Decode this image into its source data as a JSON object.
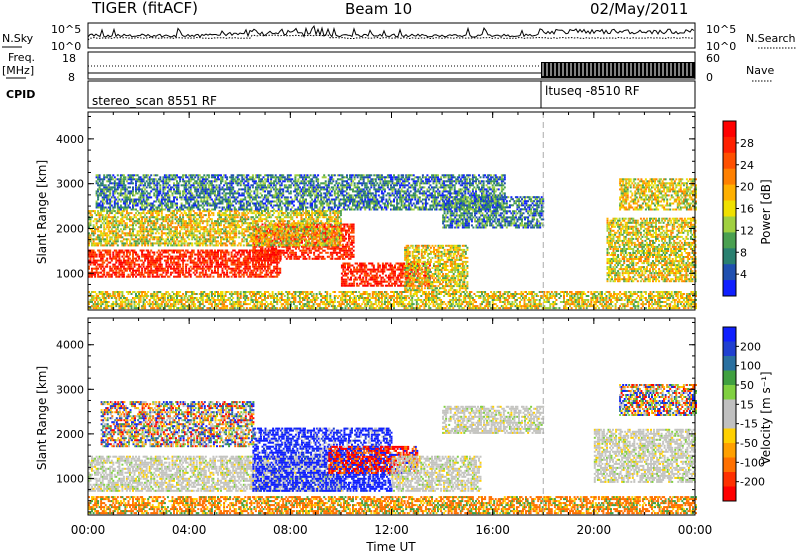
{
  "header": {
    "radar": "TIGER (fitACF)",
    "beam": "Beam 10",
    "date": "02/May/2011"
  },
  "sky_panel": {
    "left_label": "N.Sky",
    "right_label": "N.Search",
    "ticks": [
      "10^5",
      "10^0"
    ]
  },
  "freq_panel": {
    "label_line1": "Freq.",
    "label_line2": "[MHz]",
    "left_ticks": [
      "18",
      "8"
    ],
    "right_label": "Nave",
    "right_ticks": [
      "60",
      "0"
    ]
  },
  "cpid_panel": {
    "label": "CPID",
    "programs": [
      "stereo_scan 8551 RF",
      "ltuseq -8510 RF"
    ]
  },
  "chart_data": [
    {
      "type": "heatmap",
      "title": "",
      "xlabel": "Time UT",
      "ylabel": "Slant Range [km]",
      "xlim": [
        0,
        24
      ],
      "ylim": [
        180,
        4600
      ],
      "x_ticks": [
        "00:00",
        "04:00",
        "08:00",
        "12:00",
        "16:00",
        "20:00",
        "00:00"
      ],
      "y_ticks": [
        "1000",
        "2000",
        "3000",
        "4000"
      ],
      "colorbar": {
        "label": "Power [dB]",
        "ticks": [
          "28",
          "24",
          "20",
          "16",
          "12",
          "8",
          "4"
        ],
        "colors": [
          "#ff0000",
          "#ff2000",
          "#ff5000",
          "#ff8000",
          "#ffb000",
          "#f0e000",
          "#a0d040",
          "#4aa050",
          "#2a8070",
          "#2050b0",
          "#1020ff"
        ]
      },
      "regions": [
        {
          "t0": 0.0,
          "t1": 7.6,
          "r0": 900,
          "r1": 1500,
          "level": "high"
        },
        {
          "t0": 6.5,
          "t1": 10.5,
          "r0": 1300,
          "r1": 2100,
          "level": "high"
        },
        {
          "t0": 10.0,
          "t1": 13.5,
          "r0": 700,
          "r1": 1200,
          "level": "high"
        },
        {
          "t0": 12.5,
          "t1": 15.0,
          "r0": 600,
          "r1": 1600,
          "level": "mid"
        },
        {
          "t0": 0.0,
          "t1": 10.0,
          "r0": 1600,
          "r1": 2400,
          "level": "mid"
        },
        {
          "t0": 0.3,
          "t1": 16.5,
          "r0": 2400,
          "r1": 3200,
          "level": "low"
        },
        {
          "t0": 14.0,
          "t1": 18.0,
          "r0": 2000,
          "r1": 2700,
          "level": "low"
        },
        {
          "t0": 0.0,
          "t1": 24.0,
          "r0": 200,
          "r1": 600,
          "level": "mid"
        },
        {
          "t0": 20.5,
          "t1": 24.0,
          "r0": 800,
          "r1": 2200,
          "level": "mid"
        },
        {
          "t0": 21.0,
          "t1": 24.0,
          "r0": 2400,
          "r1": 3100,
          "level": "mid"
        }
      ],
      "dashed_time": 18.0
    },
    {
      "type": "heatmap",
      "title": "",
      "xlabel": "Time UT",
      "ylabel": "Slant Range [km]",
      "xlim": [
        0,
        24
      ],
      "ylim": [
        180,
        4600
      ],
      "x_ticks": [
        "00:00",
        "04:00",
        "08:00",
        "12:00",
        "16:00",
        "20:00",
        "00:00"
      ],
      "y_ticks": [
        "1000",
        "2000",
        "3000",
        "4000"
      ],
      "colorbar": {
        "label": "Velocity [m s⁻¹]",
        "ticks": [
          "200",
          "100",
          "50",
          "15",
          "-15",
          "-50",
          "-100",
          "-200"
        ],
        "colors": [
          "#1020ff",
          "#2040d0",
          "#2a70a0",
          "#40a040",
          "#80d040",
          "#c0c0c0",
          "#c0c0c0",
          "#ffd000",
          "#ffa000",
          "#ff7000",
          "#ff3000",
          "#ff0000"
        ]
      },
      "regions": [
        {
          "t0": 0.0,
          "t1": 10.0,
          "r0": 700,
          "r1": 1500,
          "level": "gray"
        },
        {
          "t0": 6.5,
          "t1": 12.0,
          "r0": 700,
          "r1": 2100,
          "level": "blue"
        },
        {
          "t0": 9.5,
          "t1": 13.0,
          "r0": 1100,
          "r1": 1700,
          "level": "red"
        },
        {
          "t0": 12.0,
          "t1": 15.5,
          "r0": 700,
          "r1": 1500,
          "level": "gray"
        },
        {
          "t0": 14.0,
          "t1": 18.0,
          "r0": 2000,
          "r1": 2600,
          "level": "gray"
        },
        {
          "t0": 0.0,
          "t1": 24.0,
          "r0": 200,
          "r1": 600,
          "level": "orange"
        },
        {
          "t0": 21.0,
          "t1": 24.0,
          "r0": 2400,
          "r1": 3100,
          "level": "mixed"
        },
        {
          "t0": 20.0,
          "t1": 24.0,
          "r0": 900,
          "r1": 2100,
          "level": "gray"
        },
        {
          "t0": 0.5,
          "t1": 6.5,
          "r0": 1700,
          "r1": 2700,
          "level": "mixed"
        }
      ],
      "dashed_time": 18.0
    }
  ]
}
